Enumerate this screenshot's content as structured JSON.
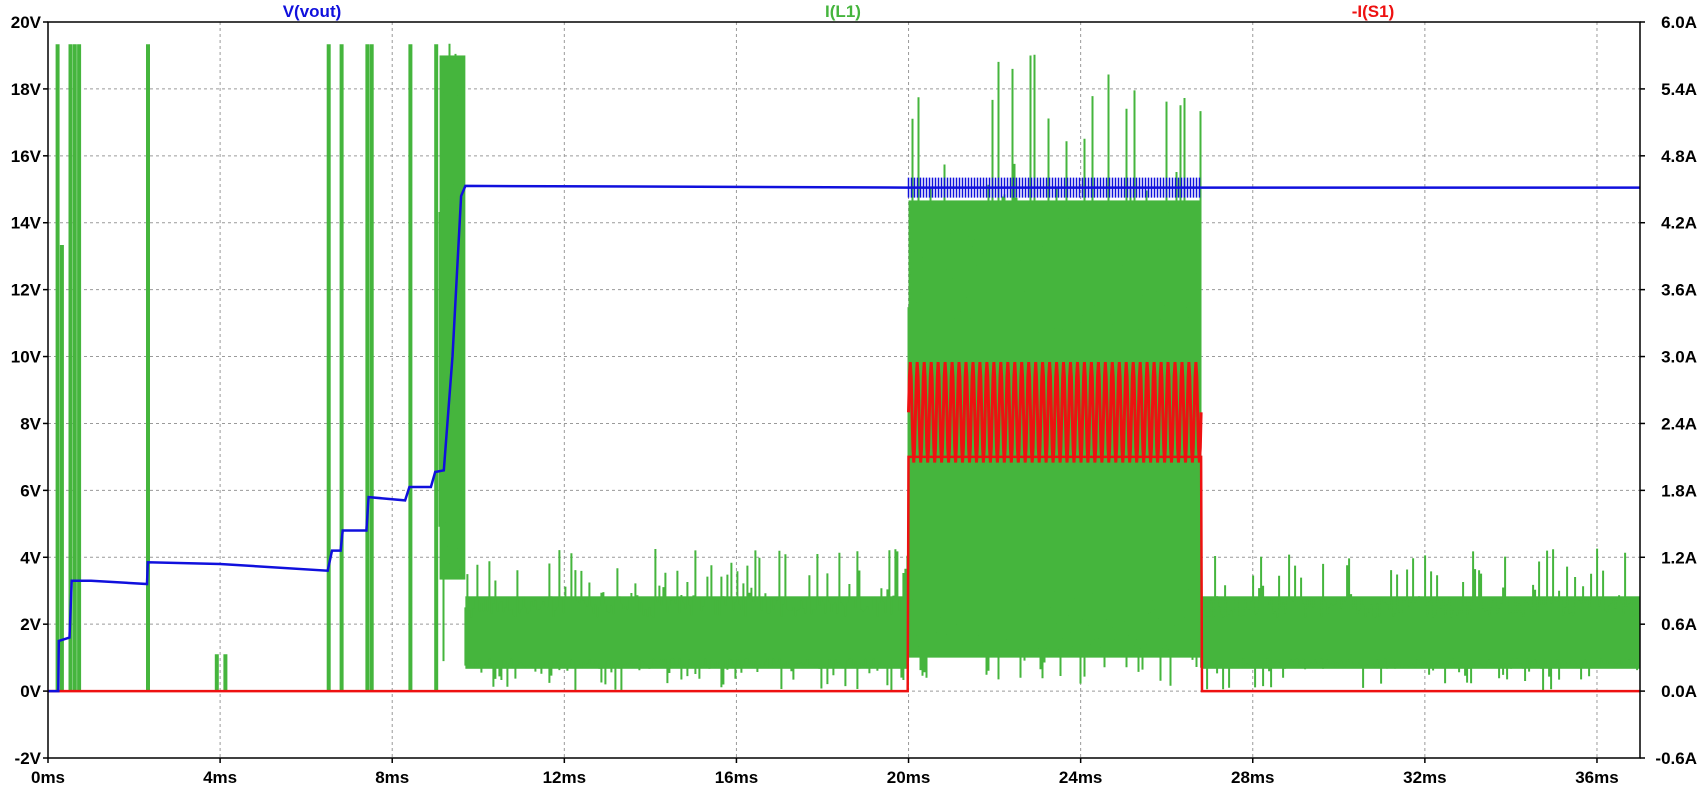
{
  "chart_data": {
    "type": "line",
    "title": "",
    "legend": [
      {
        "name": "V(vout)",
        "color": "#1010dd",
        "axis": "left"
      },
      {
        "name": "I(L1)",
        "color": "#45b53d",
        "axis": "right"
      },
      {
        "name": "-I(S1)",
        "color": "#ee1111",
        "axis": "right"
      }
    ],
    "legend_placement": "top",
    "grid": true,
    "x_axis": {
      "range": [
        0,
        37
      ],
      "unit": "ms",
      "ticks": [
        0,
        4,
        8,
        12,
        16,
        20,
        24,
        28,
        32,
        36
      ],
      "tick_labels": [
        "0ms",
        "4ms",
        "8ms",
        "12ms",
        "16ms",
        "20ms",
        "24ms",
        "28ms",
        "32ms",
        "36ms"
      ]
    },
    "y_left": {
      "range": [
        -2,
        20
      ],
      "unit": "V",
      "ticks": [
        -2,
        0,
        2,
        4,
        6,
        8,
        10,
        12,
        14,
        16,
        18,
        20
      ],
      "tick_labels": [
        "-2V",
        "0V",
        "2V",
        "4V",
        "6V",
        "8V",
        "10V",
        "12V",
        "14V",
        "16V",
        "18V",
        "20V"
      ]
    },
    "y_right": {
      "range": [
        -0.6,
        6.0
      ],
      "unit": "A",
      "ticks": [
        -0.6,
        0,
        0.6,
        1.2,
        1.8,
        2.4,
        3.0,
        3.6,
        4.2,
        4.8,
        5.4,
        6.0
      ],
      "tick_labels": [
        "-0.6A",
        "0.0A",
        "0.6A",
        "1.2A",
        "1.8A",
        "2.4A",
        "3.0A",
        "3.6A",
        "4.2A",
        "4.8A",
        "5.4A",
        "6.0A"
      ]
    },
    "series": [
      {
        "name": "V(vout)",
        "axis": "left",
        "color": "#1010dd",
        "points": [
          [
            0.0,
            0.0
          ],
          [
            0.24,
            0.0
          ],
          [
            0.25,
            1.5
          ],
          [
            0.5,
            1.6
          ],
          [
            0.55,
            3.3
          ],
          [
            1.0,
            3.3
          ],
          [
            2.3,
            3.2
          ],
          [
            2.32,
            3.85
          ],
          [
            4.0,
            3.8
          ],
          [
            6.5,
            3.6
          ],
          [
            6.6,
            4.2
          ],
          [
            6.8,
            4.2
          ],
          [
            6.85,
            4.8
          ],
          [
            7.4,
            4.8
          ],
          [
            7.45,
            5.8
          ],
          [
            8.3,
            5.7
          ],
          [
            8.4,
            6.1
          ],
          [
            8.9,
            6.1
          ],
          [
            9.0,
            6.55
          ],
          [
            9.2,
            6.6
          ],
          [
            9.4,
            10.0
          ],
          [
            9.6,
            14.8
          ],
          [
            9.7,
            15.1
          ],
          [
            20.0,
            15.05
          ],
          [
            26.8,
            15.05
          ],
          [
            37.0,
            15.05
          ]
        ],
        "ripple_regions": [
          [
            20.0,
            26.8,
            0.3
          ]
        ]
      },
      {
        "name": "I(L1)",
        "axis": "right",
        "color": "#45b53d",
        "spikes": [
          [
            0.2,
            5.8
          ],
          [
            0.3,
            4.0
          ],
          [
            0.5,
            5.8
          ],
          [
            0.6,
            5.8
          ],
          [
            0.7,
            5.8
          ],
          [
            2.3,
            5.8
          ],
          [
            3.9,
            0.33
          ],
          [
            4.1,
            0.33
          ],
          [
            6.5,
            5.8
          ],
          [
            6.8,
            5.8
          ],
          [
            7.4,
            5.8
          ],
          [
            7.5,
            5.8
          ],
          [
            8.4,
            5.8
          ],
          [
            9.0,
            5.8
          ]
        ],
        "bursts": [
          {
            "start": 9.1,
            "end": 9.7,
            "min": 0.0,
            "max": 5.9,
            "fill_low": 1.0,
            "fill_high": 5.7
          },
          {
            "start": 9.7,
            "end": 20.0,
            "min": 0.0,
            "max": 1.28,
            "fill_low": 0.2,
            "fill_high": 0.85
          },
          {
            "start": 20.0,
            "end": 26.8,
            "min": 0.0,
            "max": 5.8,
            "fill_low": 0.3,
            "fill_high": 4.4
          },
          {
            "start": 26.8,
            "end": 37.0,
            "min": 0.0,
            "max": 1.28,
            "fill_low": 0.2,
            "fill_high": 0.85
          }
        ]
      },
      {
        "name": "-I(S1)",
        "axis": "right",
        "color": "#ee1111",
        "points": [
          [
            0.0,
            0.0
          ],
          [
            19.98,
            0.0
          ],
          [
            20.0,
            2.1
          ],
          [
            26.8,
            2.1
          ],
          [
            26.82,
            0.0
          ],
          [
            37.0,
            0.0
          ]
        ],
        "oscillation": {
          "start": 20.0,
          "end": 26.8,
          "low": 2.05,
          "high": 2.95,
          "cycles": 42
        }
      }
    ]
  }
}
